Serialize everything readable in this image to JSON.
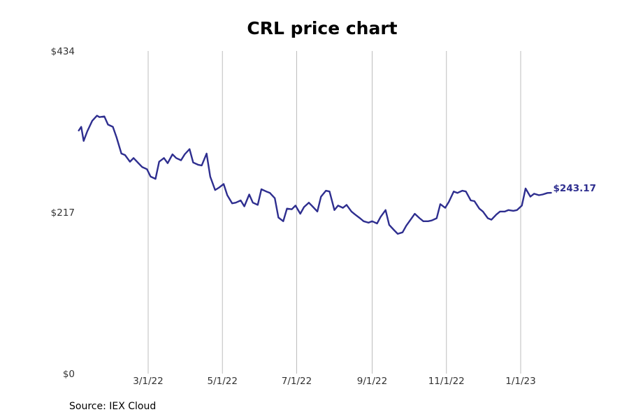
{
  "chart_data": {
    "type": "line",
    "title": "CRL price chart",
    "xlabel": "",
    "ylabel": "",
    "source": "Source: IEX Cloud",
    "ylim": [
      0,
      434
    ],
    "xlim": [
      "2022-01-01",
      "2023-02-28"
    ],
    "y_ticks": [
      {
        "value": 0,
        "label": "$0"
      },
      {
        "value": 217,
        "label": "$217"
      },
      {
        "value": 434,
        "label": "$434"
      }
    ],
    "x_ticks": [
      {
        "date": "2022-03-01",
        "label": "3/1/22"
      },
      {
        "date": "2022-05-01",
        "label": "5/1/22"
      },
      {
        "date": "2022-07-01",
        "label": "7/1/22"
      },
      {
        "date": "2022-09-01",
        "label": "9/1/22"
      },
      {
        "date": "2022-11-01",
        "label": "11/1/22"
      },
      {
        "date": "2023-01-01",
        "label": "1/1/23"
      }
    ],
    "grid": {
      "vertical": true,
      "horizontal": false
    },
    "line_color": "#2e2e8f",
    "end_label": "$243.17",
    "series": [
      {
        "dates": [
          "2022-01-03",
          "2022-01-05",
          "2022-01-07",
          "2022-01-10",
          "2022-01-14",
          "2022-01-18",
          "2022-01-20",
          "2022-01-24",
          "2022-01-27",
          "2022-01-31",
          "2022-02-03",
          "2022-02-07",
          "2022-02-10",
          "2022-02-14",
          "2022-02-17",
          "2022-02-21",
          "2022-02-24",
          "2022-02-28",
          "2022-03-03",
          "2022-03-07",
          "2022-03-10",
          "2022-03-14",
          "2022-03-17",
          "2022-03-21",
          "2022-03-24",
          "2022-03-28",
          "2022-03-31",
          "2022-04-04",
          "2022-04-07",
          "2022-04-11",
          "2022-04-14",
          "2022-04-18",
          "2022-04-21",
          "2022-04-25",
          "2022-04-28",
          "2022-05-02",
          "2022-05-05",
          "2022-05-09",
          "2022-05-12",
          "2022-05-16",
          "2022-05-19",
          "2022-05-23",
          "2022-05-26",
          "2022-05-30",
          "2022-06-02",
          "2022-06-06",
          "2022-06-09",
          "2022-06-13",
          "2022-06-16",
          "2022-06-20",
          "2022-06-23",
          "2022-06-27",
          "2022-06-30",
          "2022-07-04",
          "2022-07-07",
          "2022-07-11",
          "2022-07-14",
          "2022-07-18",
          "2022-07-21",
          "2022-07-25",
          "2022-07-28",
          "2022-08-01",
          "2022-08-04",
          "2022-08-08",
          "2022-08-11",
          "2022-08-15",
          "2022-08-18",
          "2022-08-22",
          "2022-08-25",
          "2022-08-29",
          "2022-09-01",
          "2022-09-05",
          "2022-09-08",
          "2022-09-12",
          "2022-09-15",
          "2022-09-19",
          "2022-09-22",
          "2022-09-26",
          "2022-09-29",
          "2022-10-03",
          "2022-10-06",
          "2022-10-10",
          "2022-10-13",
          "2022-10-17",
          "2022-10-20",
          "2022-10-24",
          "2022-10-27",
          "2022-10-31",
          "2022-11-03",
          "2022-11-07",
          "2022-11-10",
          "2022-11-14",
          "2022-11-17",
          "2022-11-21",
          "2022-11-24",
          "2022-11-28",
          "2022-12-01",
          "2022-12-05",
          "2022-12-08",
          "2022-12-12",
          "2022-12-15",
          "2022-12-19",
          "2022-12-22",
          "2022-12-26",
          "2022-12-29",
          "2023-01-02",
          "2023-01-05",
          "2023-01-09",
          "2023-01-12",
          "2023-01-16",
          "2023-01-19",
          "2023-01-23",
          "2023-01-26"
        ],
        "values": [
          327,
          332,
          313,
          326,
          340,
          347,
          345,
          346,
          335,
          332,
          318,
          296,
          294,
          285,
          290,
          283,
          278,
          275,
          265,
          262,
          285,
          290,
          283,
          295,
          290,
          287,
          295,
          302,
          284,
          281,
          280,
          296,
          265,
          247,
          250,
          255,
          240,
          229,
          230,
          233,
          225,
          241,
          230,
          227,
          248,
          245,
          243,
          236,
          210,
          205,
          222,
          221,
          226,
          215,
          224,
          230,
          225,
          218,
          238,
          246,
          245,
          220,
          226,
          223,
          227,
          218,
          214,
          209,
          205,
          203,
          205,
          202,
          211,
          220,
          200,
          193,
          188,
          190,
          199,
          208,
          215,
          209,
          205,
          205,
          206,
          209,
          228,
          223,
          231,
          245,
          243,
          246,
          245,
          233,
          232,
          222,
          218,
          209,
          207,
          214,
          218,
          218,
          220,
          219,
          220,
          226,
          249,
          238,
          242,
          240,
          241,
          243,
          243.17
        ]
      }
    ]
  }
}
